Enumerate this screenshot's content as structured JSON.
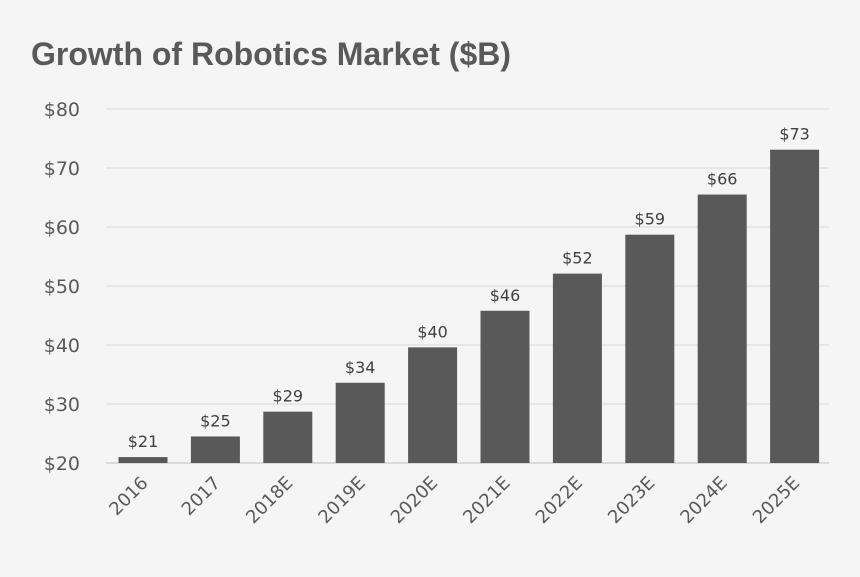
{
  "chart_data": {
    "type": "bar",
    "title": "Growth of Robotics Market ($B)",
    "categories": [
      "2016",
      "2017",
      "2018E",
      "2019E",
      "2020E",
      "2021E",
      "2022E",
      "2023E",
      "2024E",
      "2025E"
    ],
    "values": [
      21,
      24.5,
      28.7,
      33.6,
      39.6,
      45.8,
      52.1,
      58.7,
      65.5,
      73.1
    ],
    "data_labels": [
      "$21",
      "$25",
      "$29",
      "$34",
      "$40",
      "$46",
      "$52",
      "$59",
      "$66",
      "$73"
    ],
    "ylim": [
      20,
      80
    ],
    "yticks": [
      20,
      30,
      40,
      50,
      60,
      70,
      80
    ],
    "ytick_labels": [
      "$20",
      "$30",
      "$40",
      "$50",
      "$60",
      "$70",
      "$80"
    ],
    "xlabel": "",
    "ylabel": "",
    "grid": true,
    "legend": "none",
    "bar_color": "#595959",
    "grid_color": "#d9d9d9",
    "text_color": "#595959",
    "background_color": "#f5f5f5"
  }
}
